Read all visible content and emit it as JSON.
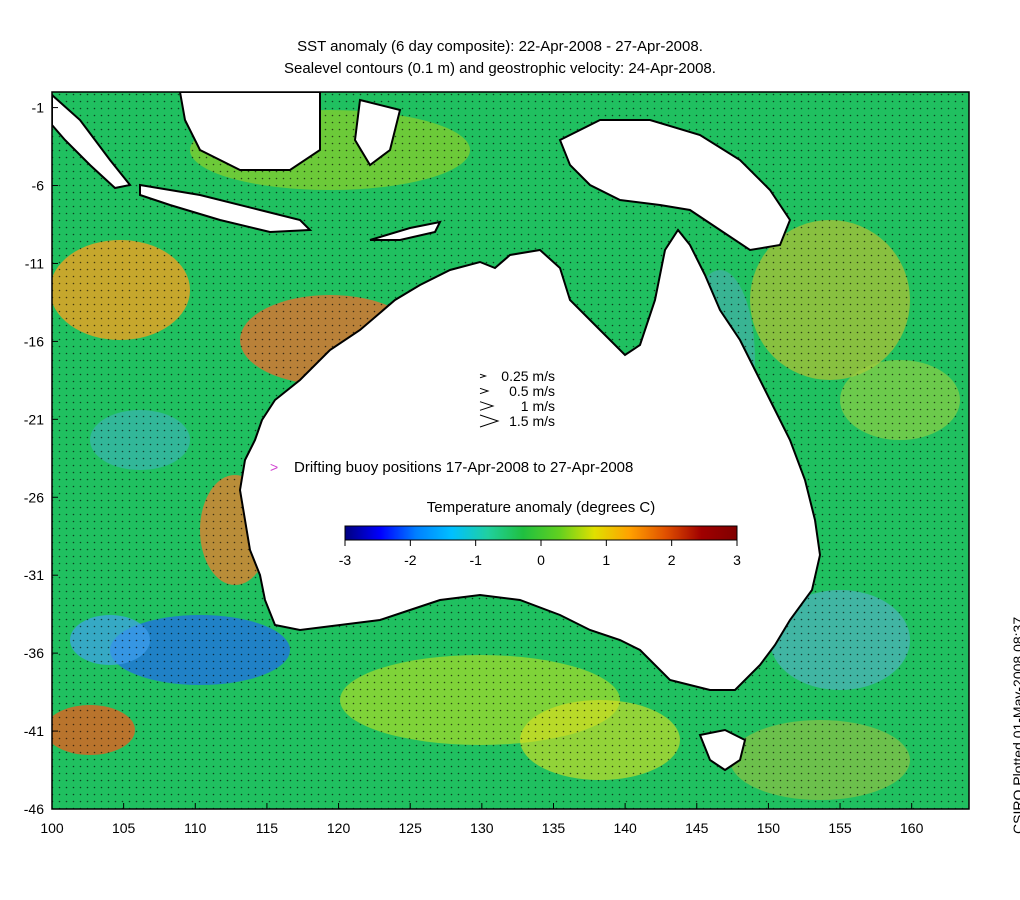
{
  "title": {
    "line1": "SST anomaly (6 day composite): 22-Apr-2008 - 27-Apr-2008.",
    "line2": "Sealevel contours (0.1 m) and geostrophic velocity: 24-Apr-2008."
  },
  "axes": {
    "x_ticks": [
      "100",
      "105",
      "110",
      "115",
      "120",
      "125",
      "130",
      "135",
      "140",
      "145",
      "150",
      "155",
      "160"
    ],
    "y_ticks": [
      "-1",
      "-6",
      "-11",
      "-16",
      "-21",
      "-26",
      "-31",
      "-36",
      "-41",
      "-46"
    ],
    "xlim": [
      100,
      164
    ],
    "ylim": [
      -46,
      0
    ]
  },
  "velocity_legend": [
    {
      "label": "0.25 m/s",
      "speed": 0.25
    },
    {
      "label": "0.5 m/s",
      "speed": 0.5
    },
    {
      "label": "1 m/s",
      "speed": 1
    },
    {
      "label": "1.5 m/s",
      "speed": 1.5
    }
  ],
  "buoy_legend": {
    "marker": ">",
    "label": "Drifting buoy positions 17-Apr-2008 to 27-Apr-2008",
    "color": "#d040d0"
  },
  "colorbar": {
    "title": "Temperature anomaly (degrees C)",
    "ticks": [
      "-3",
      "-2",
      "-1",
      "0",
      "1",
      "2",
      "3"
    ],
    "range": [
      -3,
      3
    ],
    "colors": [
      "#00007f",
      "#0000ff",
      "#0080ff",
      "#00c0ff",
      "#20d0a0",
      "#20c040",
      "#60d020",
      "#e0e000",
      "#ffa000",
      "#e05000",
      "#a00000",
      "#800000"
    ]
  },
  "credit": "CSIRO Plotted 01-May-2008 08:37"
}
